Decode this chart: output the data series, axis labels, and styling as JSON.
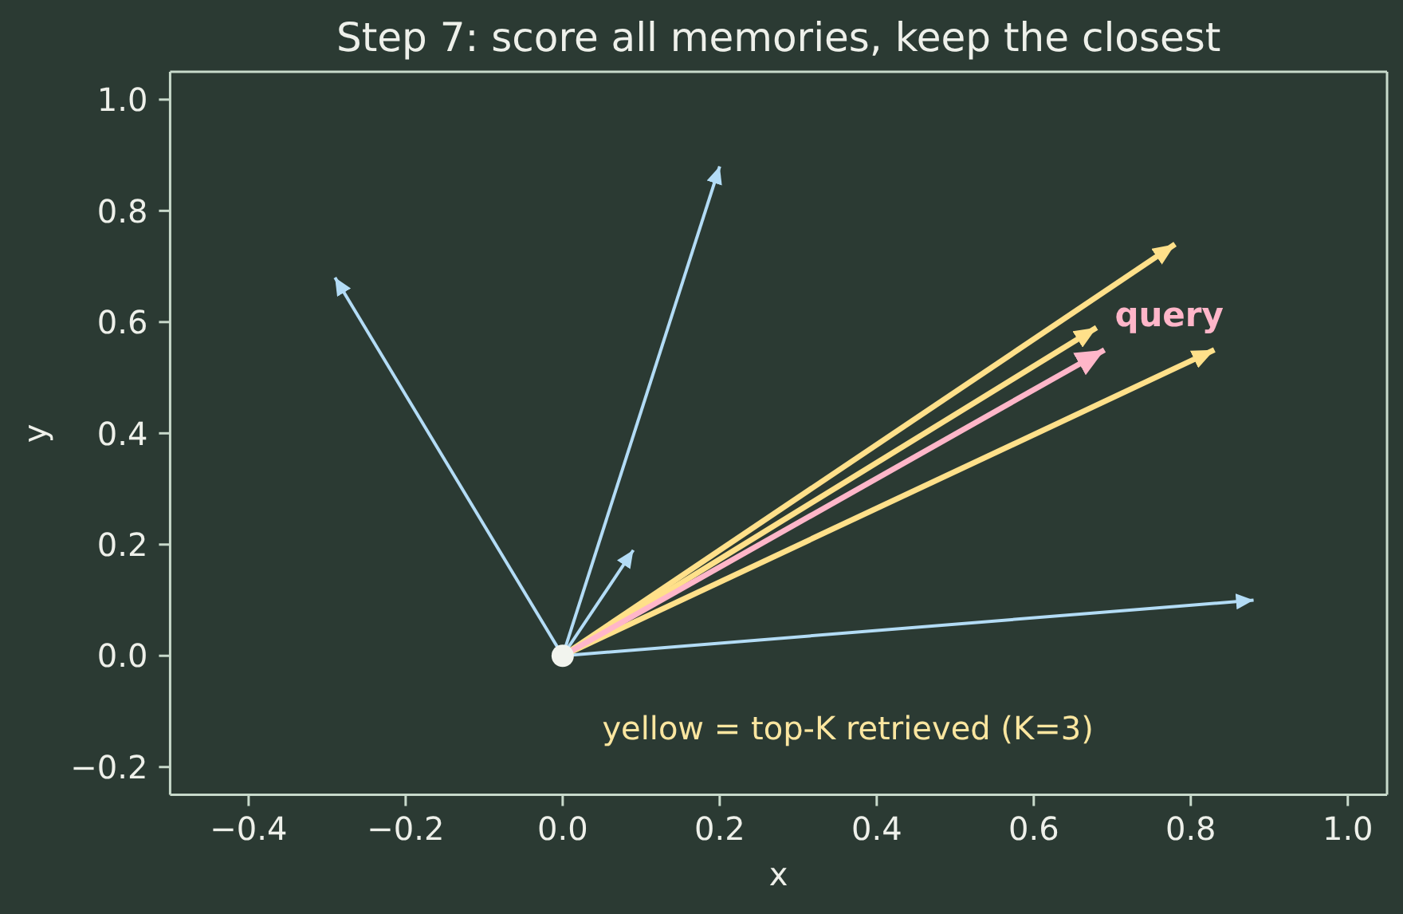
{
  "chart_data": {
    "type": "line",
    "title": "Step 7: score all memories, keep the closest",
    "xlabel": "x",
    "ylabel": "y",
    "xlim": [
      -0.5,
      1.05
    ],
    "ylim": [
      -0.25,
      1.05
    ],
    "xticks": [
      {
        "value": -0.4,
        "label": "−0.4"
      },
      {
        "value": -0.2,
        "label": "−0.2"
      },
      {
        "value": 0,
        "label": "0.0"
      },
      0.2,
      0.4,
      0.6,
      0.8,
      {
        "value": 1,
        "label": "1.0"
      }
    ],
    "yticks": [
      {
        "value": -0.2,
        "label": "−0.2"
      },
      {
        "value": 0,
        "label": "0.0"
      },
      0.2,
      0.4,
      0.6,
      0.8,
      {
        "value": 1,
        "label": "1.0"
      }
    ],
    "annotations": [
      "yellow = top-K retrieved (K=3)"
    ],
    "series": [
      {
        "color": "#b3dcf6",
        "x": [
          0,
          -0.29
        ],
        "values": [
          0,
          0.68
        ]
      },
      {
        "color": "#b3dcf6",
        "x": [
          0,
          0.2
        ],
        "values": [
          0,
          0.88
        ]
      },
      {
        "color": "#b3dcf6",
        "x": [
          0,
          0.09
        ],
        "values": [
          0,
          0.19
        ]
      },
      {
        "color": "#b3dcf6",
        "x": [
          0,
          0.88
        ],
        "values": [
          0,
          0.1
        ]
      },
      {
        "color": "#ffe08a",
        "x": [
          0,
          0.78
        ],
        "values": [
          0,
          0.74
        ]
      },
      {
        "color": "#ffe08a",
        "x": [
          0,
          0.68
        ],
        "values": [
          0,
          0.59
        ]
      },
      {
        "color": "#ffe08a",
        "x": [
          0,
          0.83
        ],
        "values": [
          0,
          0.55
        ]
      },
      {
        "name": "query",
        "color": "#ffb6c9",
        "x": [
          0,
          0.69
        ],
        "values": [
          0,
          0.55
        ]
      },
      {
        "type": "scatter",
        "color": "#f2f4ee",
        "x": [
          0
        ],
        "values": [
          0
        ],
        "marker": "circle"
      }
    ]
  }
}
